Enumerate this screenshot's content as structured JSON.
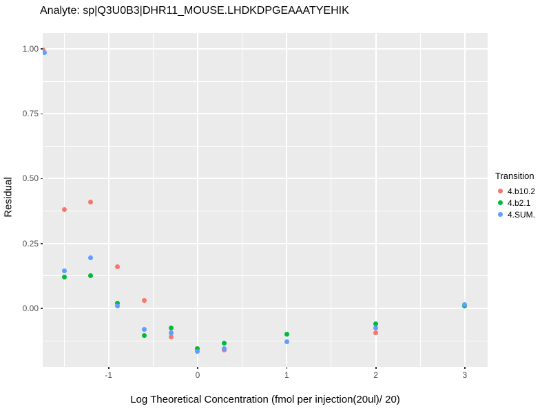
{
  "title": "Analyte: sp|Q3U0B3|DHR11_MOUSE.LHDKDPGEAAATYEHIK",
  "panel_background": "#EBEBEB",
  "grid_color": "#ffffff",
  "tick_label_color": "#4D4D4D",
  "chart_data": {
    "type": "scatter",
    "title": "Analyte: sp|Q3U0B3|DHR11_MOUSE.LHDKDPGEAAATYEHIK",
    "xlabel": "Log Theoretical Concentration (fmol per injection(20ul)/ 20)",
    "ylabel": "Residual",
    "xlim": [
      -1.74,
      3.256
    ],
    "ylim": [
      -0.2255,
      1.061
    ],
    "grid": true,
    "x_major_ticks": [
      -1,
      0,
      1,
      2,
      3
    ],
    "x_tick_labels": [
      "-1",
      "0",
      "1",
      "2",
      "3"
    ],
    "x_minor_ticks": [
      -1.5,
      -0.5,
      0.5,
      1.5,
      2.5
    ],
    "y_major_ticks": [
      0,
      0.25,
      0.5,
      0.75,
      1.0
    ],
    "y_tick_labels": [
      "0.00",
      "0.25",
      "0.50",
      "0.75",
      "1.00"
    ],
    "y_minor_ticks": [
      -0.125,
      0.125,
      0.375,
      0.625,
      0.875
    ],
    "legend_title": "Transition",
    "legend_position": "right",
    "series": [
      {
        "name": "4.b10.2",
        "color": "#F8766D",
        "points": [
          [
            -1.74,
            0.995
          ],
          [
            -1.5,
            0.38
          ],
          [
            -1.2,
            0.41
          ],
          [
            -0.9,
            0.16
          ],
          [
            -0.6,
            0.03
          ],
          [
            -0.3,
            -0.11
          ],
          [
            0.0,
            -0.155
          ],
          [
            0.3,
            -0.16
          ],
          [
            2.0,
            -0.095
          ]
        ]
      },
      {
        "name": "4.b2.1",
        "color": "#00BA38",
        "points": [
          [
            -1.5,
            0.12
          ],
          [
            -1.2,
            0.125
          ],
          [
            -0.9,
            0.02
          ],
          [
            -0.6,
            -0.105
          ],
          [
            -0.3,
            -0.075
          ],
          [
            0.0,
            -0.155
          ],
          [
            0.3,
            -0.135
          ],
          [
            1.0,
            -0.1
          ],
          [
            2.0,
            -0.06
          ],
          [
            3.0,
            0.01
          ]
        ]
      },
      {
        "name": "4.SUM.",
        "color": "#619CFF",
        "points": [
          [
            -1.72,
            0.985
          ],
          [
            -1.5,
            0.145
          ],
          [
            -1.2,
            0.195
          ],
          [
            -0.9,
            0.01
          ],
          [
            -0.6,
            -0.08
          ],
          [
            -0.3,
            -0.095
          ],
          [
            0.0,
            -0.165
          ],
          [
            0.3,
            -0.155
          ],
          [
            1.0,
            -0.13
          ],
          [
            2.0,
            -0.075
          ],
          [
            3.0,
            0.015
          ]
        ]
      }
    ]
  }
}
